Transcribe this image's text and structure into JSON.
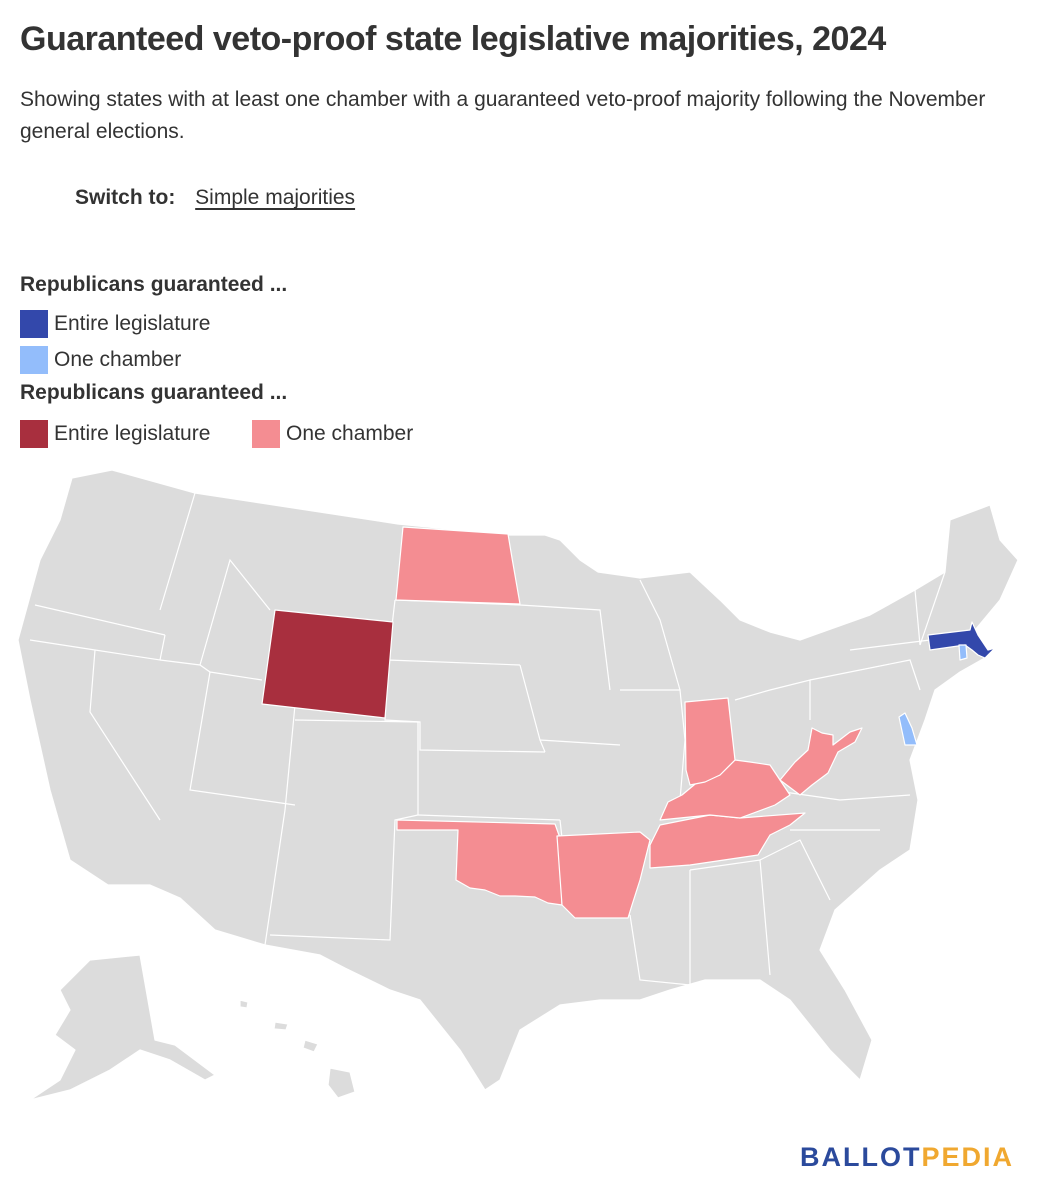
{
  "title": "Guaranteed veto-proof state legislative majorities, 2024",
  "subtitle": "Showing states with at least one chamber with a guaranteed veto-proof majority following the November general elections.",
  "switch": {
    "label": "Switch to:",
    "link": "Simple majorities"
  },
  "legend": {
    "group1": {
      "heading": "Republicans guaranteed ...",
      "items": [
        {
          "label": "Entire legislature",
          "color": "#3348ab"
        },
        {
          "label": "One chamber",
          "color": "#93bdfb"
        }
      ]
    },
    "group2": {
      "heading": "Republicans guaranteed ...",
      "items": [
        {
          "label": "Entire legislature",
          "color": "#a82f3e"
        },
        {
          "label": "One chamber",
          "color": "#f48d92"
        }
      ]
    }
  },
  "map": {
    "default_color": "#dcdcdc",
    "state_categories": {
      "WY": "rep_entire",
      "ND": "rep_one",
      "OK": "rep_one",
      "AR": "rep_one",
      "TN": "rep_one",
      "KY": "rep_one",
      "IN": "rep_one",
      "WV": "rep_one",
      "MA": "group1_entire",
      "RI": "group1_one",
      "DE": "group1_one"
    }
  },
  "branding": {
    "part1": "BALLOT",
    "part2": "PEDIA"
  }
}
